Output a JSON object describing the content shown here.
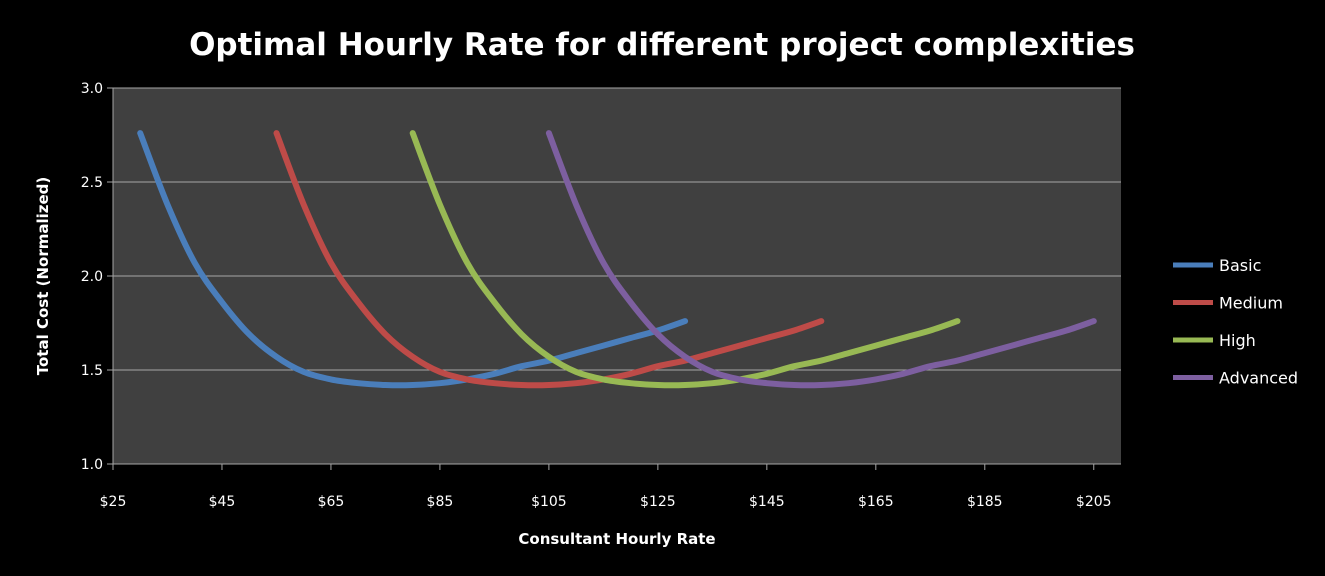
{
  "chart_data": {
    "type": "line",
    "title": "Optimal Hourly Rate for different project complexities",
    "xlabel": "Consultant Hourly Rate",
    "ylabel": "Total Cost (Normalized)",
    "xlim": [
      25,
      210
    ],
    "ylim": [
      1.0,
      3.0
    ],
    "x_ticks": [
      25,
      45,
      65,
      85,
      105,
      125,
      145,
      165,
      185,
      205
    ],
    "x_tick_labels": [
      "$25",
      "$45",
      "$65",
      "$85",
      "$105",
      "$125",
      "$145",
      "$165",
      "$185",
      "$205"
    ],
    "y_ticks": [
      1.0,
      1.5,
      2.0,
      2.5,
      3.0
    ],
    "y_tick_labels": [
      "1.0",
      "1.5",
      "2.0",
      "2.5",
      "3.0"
    ],
    "grid": "horizontal",
    "plot_background": "#404040",
    "legend_position": "right",
    "series": [
      {
        "name": "Basic",
        "color": "#4a7ebb",
        "x": [
          30,
          35,
          40,
          45,
          50,
          55,
          60,
          65,
          70,
          75,
          80,
          85,
          90,
          95,
          100,
          105,
          110,
          115,
          120,
          125,
          130
        ],
        "y": [
          2.76,
          2.38,
          2.07,
          1.86,
          1.69,
          1.57,
          1.49,
          1.45,
          1.43,
          1.42,
          1.42,
          1.43,
          1.45,
          1.48,
          1.52,
          1.55,
          1.59,
          1.63,
          1.67,
          1.71,
          1.76
        ]
      },
      {
        "name": "Medium",
        "color": "#be4b48",
        "x": [
          55,
          60,
          65,
          70,
          75,
          80,
          85,
          90,
          95,
          100,
          105,
          110,
          115,
          120,
          125,
          130,
          135,
          140,
          145,
          150,
          155
        ],
        "y": [
          2.76,
          2.38,
          2.07,
          1.86,
          1.69,
          1.57,
          1.49,
          1.45,
          1.43,
          1.42,
          1.42,
          1.43,
          1.45,
          1.48,
          1.52,
          1.55,
          1.59,
          1.63,
          1.67,
          1.71,
          1.76
        ]
      },
      {
        "name": "High",
        "color": "#98b954",
        "x": [
          80,
          85,
          90,
          95,
          100,
          105,
          110,
          115,
          120,
          125,
          130,
          135,
          140,
          145,
          150,
          155,
          160,
          165,
          170,
          175,
          180
        ],
        "y": [
          2.76,
          2.38,
          2.07,
          1.86,
          1.69,
          1.57,
          1.49,
          1.45,
          1.43,
          1.42,
          1.42,
          1.43,
          1.45,
          1.48,
          1.52,
          1.55,
          1.59,
          1.63,
          1.67,
          1.71,
          1.76
        ]
      },
      {
        "name": "Advanced",
        "color": "#7d5fa0",
        "x": [
          105,
          110,
          115,
          120,
          125,
          130,
          135,
          140,
          145,
          150,
          155,
          160,
          165,
          170,
          175,
          180,
          185,
          190,
          195,
          200,
          205
        ],
        "y": [
          2.76,
          2.38,
          2.07,
          1.86,
          1.69,
          1.57,
          1.49,
          1.45,
          1.43,
          1.42,
          1.42,
          1.43,
          1.45,
          1.48,
          1.52,
          1.55,
          1.59,
          1.63,
          1.67,
          1.71,
          1.76
        ]
      }
    ]
  }
}
